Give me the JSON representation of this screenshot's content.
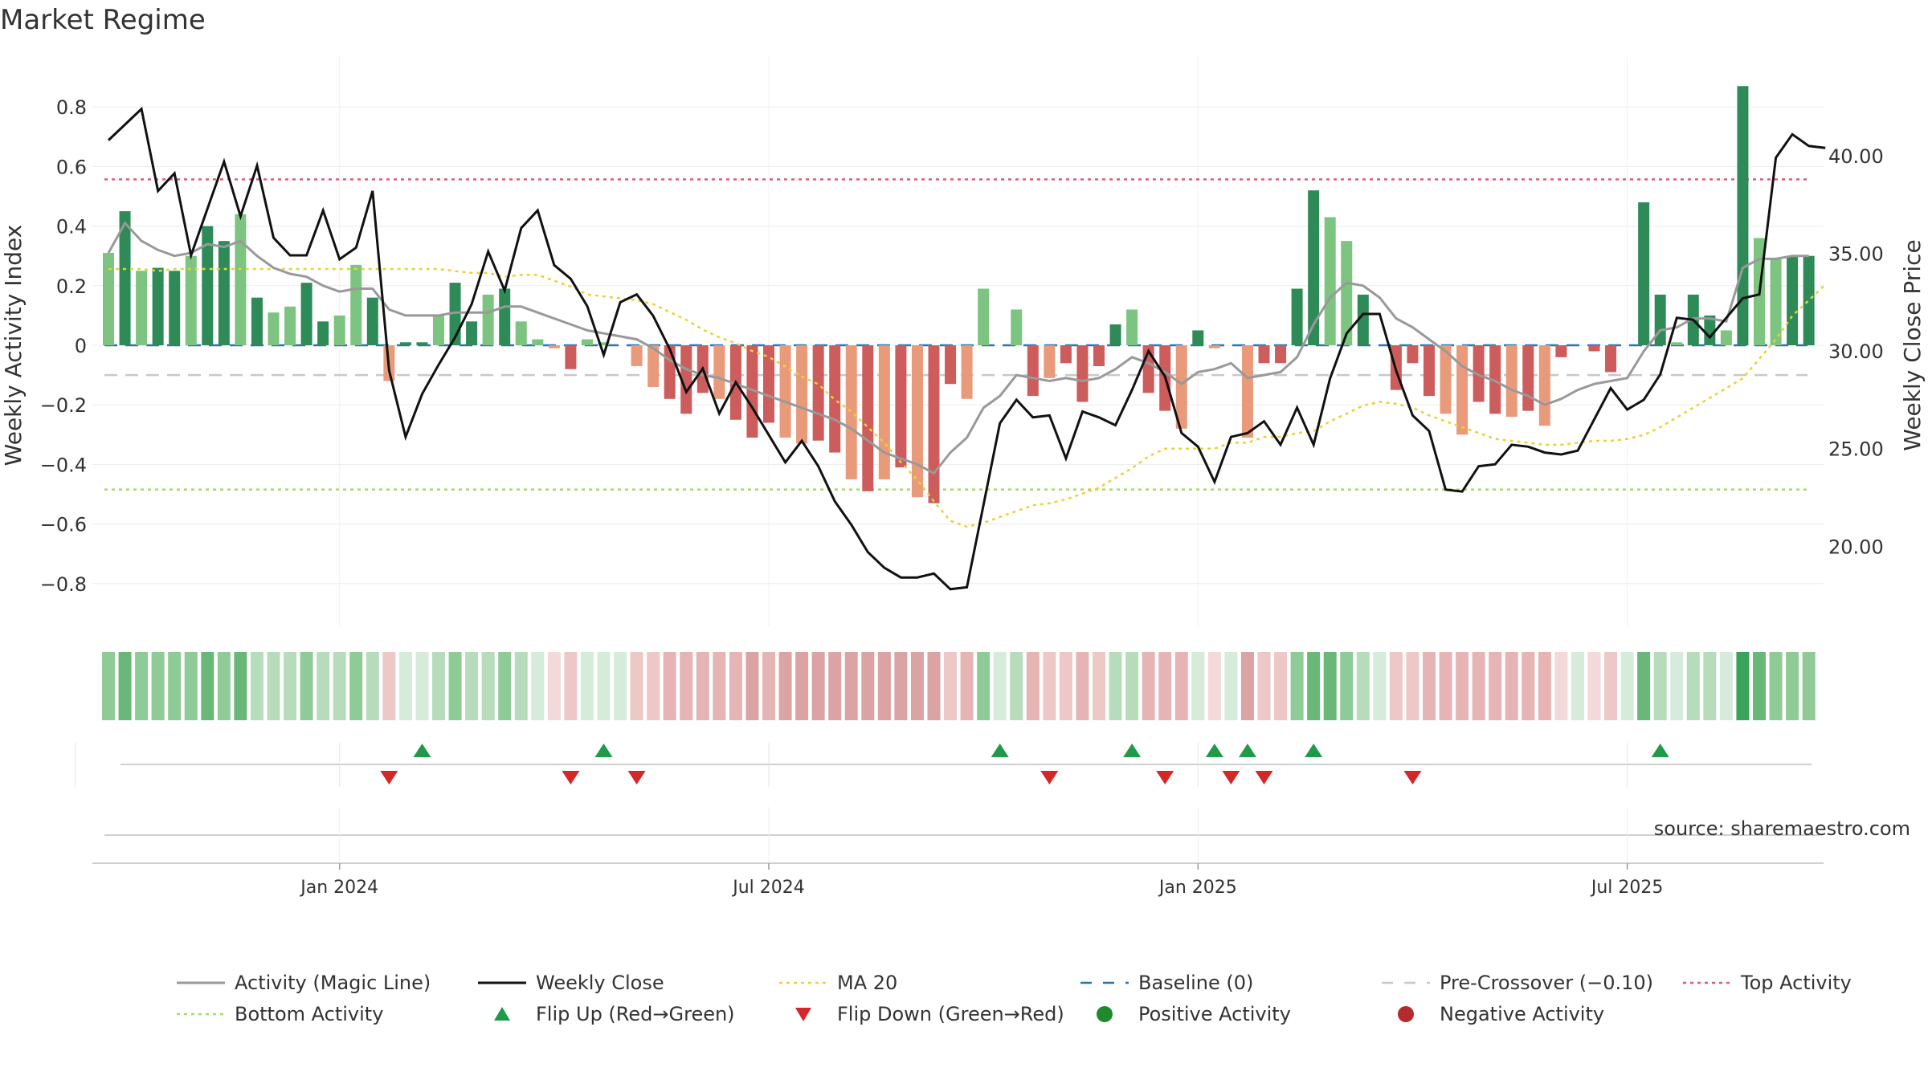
{
  "chart_data": {
    "type": "bar",
    "title": "Market Regime",
    "ylabel_left": "Weekly Activity Index",
    "ylabel_right": "Weekly Close Price",
    "left_ylim": [
      -0.94,
      0.94
    ],
    "right_ylim": [
      15.9,
      45.1
    ],
    "left_ticks": [
      "0.8",
      "0.6",
      "0.4",
      "0.2",
      "0",
      "−0.2",
      "−0.4",
      "−0.6",
      "−0.8"
    ],
    "left_tick_values": [
      0.8,
      0.6,
      0.4,
      0.2,
      0,
      -0.2,
      -0.4,
      -0.6,
      -0.8
    ],
    "right_ticks": [
      "40.00",
      "35.00",
      "30.00",
      "25.00",
      "20.00"
    ],
    "right_tick_values": [
      40,
      35,
      30,
      25,
      20
    ],
    "x_ticks": [
      "Jan 2024",
      "Jul 2024",
      "Jan 2025",
      "Jul 2025"
    ],
    "x_tick_weeks": [
      14,
      40,
      66,
      92
    ],
    "n_weeks": 104,
    "reference_lines": {
      "top": 0.557,
      "bottom": -0.484,
      "pre_crossover": -0.1,
      "baseline": 0
    },
    "activity": [
      0.31,
      0.45,
      0.25,
      0.26,
      0.25,
      0.3,
      0.4,
      0.35,
      0.44,
      0.16,
      0.11,
      0.13,
      0.21,
      0.08,
      0.1,
      0.27,
      0.16,
      -0.12,
      0.01,
      0.01,
      0.1,
      0.21,
      0.08,
      0.17,
      0.19,
      0.08,
      0.02,
      -0.01,
      -0.08,
      0.02,
      0.01,
      0.0,
      -0.07,
      -0.14,
      -0.18,
      -0.23,
      -0.16,
      -0.18,
      -0.25,
      -0.31,
      -0.26,
      -0.31,
      -0.33,
      -0.32,
      -0.36,
      -0.45,
      -0.49,
      -0.45,
      -0.41,
      -0.51,
      -0.53,
      -0.13,
      -0.18,
      0.19,
      0.0,
      0.12,
      -0.17,
      -0.11,
      -0.06,
      -0.19,
      -0.07,
      0.07,
      0.12,
      -0.16,
      -0.22,
      -0.28,
      0.05,
      -0.01,
      0.0,
      -0.31,
      -0.06,
      -0.06,
      0.19,
      0.52,
      0.43,
      0.35,
      0.17,
      0.0,
      -0.15,
      -0.06,
      -0.17,
      -0.23,
      -0.3,
      -0.19,
      -0.23,
      -0.24,
      -0.22,
      -0.27,
      -0.04,
      0.0,
      -0.02,
      -0.09,
      0.0,
      0.48,
      0.17,
      0.01,
      0.17,
      0.1,
      0.05,
      0.87,
      0.36,
      0.29,
      0.3,
      0.3
    ],
    "magic_line": [
      0.31,
      0.41,
      0.35,
      0.32,
      0.3,
      0.31,
      0.34,
      0.33,
      0.35,
      0.3,
      0.26,
      0.24,
      0.23,
      0.2,
      0.18,
      0.19,
      0.19,
      0.12,
      0.1,
      0.1,
      0.1,
      0.11,
      0.11,
      0.11,
      0.13,
      0.13,
      0.11,
      0.09,
      0.07,
      0.05,
      0.04,
      0.03,
      0.02,
      -0.01,
      -0.05,
      -0.08,
      -0.1,
      -0.11,
      -0.13,
      -0.15,
      -0.17,
      -0.19,
      -0.21,
      -0.23,
      -0.25,
      -0.28,
      -0.32,
      -0.36,
      -0.38,
      -0.4,
      -0.43,
      -0.36,
      -0.31,
      -0.21,
      -0.17,
      -0.1,
      -0.11,
      -0.12,
      -0.11,
      -0.12,
      -0.11,
      -0.08,
      -0.04,
      -0.06,
      -0.09,
      -0.13,
      -0.09,
      -0.08,
      -0.06,
      -0.11,
      -0.1,
      -0.09,
      -0.04,
      0.07,
      0.16,
      0.21,
      0.2,
      0.16,
      0.09,
      0.06,
      0.02,
      -0.02,
      -0.07,
      -0.1,
      -0.12,
      -0.15,
      -0.17,
      -0.2,
      -0.18,
      -0.15,
      -0.13,
      -0.12,
      -0.11,
      -0.02,
      0.05,
      0.06,
      0.09,
      0.09,
      0.08,
      0.26,
      0.29,
      0.29,
      0.3,
      0.3
    ],
    "weekly_close": [
      40.8,
      41.6,
      42.4,
      38.2,
      39.1,
      34.9,
      37.3,
      39.7,
      36.9,
      39.5,
      35.8,
      34.9,
      34.9,
      37.2,
      34.7,
      35.3,
      38.2,
      29.0,
      25.6,
      27.8,
      29.3,
      30.7,
      32.4,
      35.1,
      33.1,
      36.3,
      37.2,
      34.4,
      33.7,
      32.3,
      29.8,
      32.5,
      32.9,
      31.8,
      30.1,
      27.9,
      29.1,
      26.8,
      28.4,
      27.1,
      25.7,
      24.3,
      25.4,
      24.1,
      22.3,
      21.1,
      19.7,
      18.9,
      18.4,
      18.4,
      18.6,
      17.8,
      17.9,
      22.1,
      26.3,
      27.5,
      26.6,
      26.7,
      24.5,
      26.9,
      26.6,
      26.2,
      28.0,
      30.0,
      28.7,
      25.8,
      25.1,
      23.3,
      25.6,
      25.8,
      26.4,
      25.2,
      27.1,
      25.2,
      28.6,
      30.9,
      31.9,
      31.9,
      29.0,
      26.7,
      25.9,
      22.9,
      22.8,
      24.1,
      24.2,
      25.2,
      25.1,
      24.8,
      24.7,
      24.9,
      26.5,
      28.1,
      27.0,
      27.5,
      28.8,
      31.7,
      31.6,
      30.7,
      31.7,
      32.7,
      32.9,
      39.9,
      41.1,
      40.5,
      40.4
    ],
    "ma20": [
      34.2,
      34.2,
      34.2,
      34.1,
      34.2,
      34.2,
      34.2,
      34.2,
      34.2,
      34.2,
      34.2,
      34.2,
      34.2,
      34.2,
      34.2,
      34.2,
      34.2,
      34.2,
      34.2,
      34.2,
      34.2,
      34.1,
      34.0,
      34.0,
      33.8,
      33.9,
      33.9,
      33.6,
      33.3,
      32.9,
      32.8,
      32.7,
      32.6,
      32.4,
      32.0,
      31.6,
      31.1,
      30.7,
      30.4,
      30.0,
      29.7,
      29.2,
      28.7,
      28.3,
      27.5,
      26.9,
      26.1,
      25.3,
      24.3,
      23.4,
      22.3,
      21.3,
      21.0,
      21.2,
      21.5,
      21.8,
      22.1,
      22.2,
      22.4,
      22.7,
      23.0,
      23.5,
      24.0,
      24.6,
      25.0,
      25.0,
      25.0,
      25.0,
      25.3,
      25.3,
      25.6,
      25.6,
      25.8,
      25.9,
      26.4,
      26.8,
      27.2,
      27.4,
      27.3,
      27.1,
      26.7,
      26.4,
      26.1,
      25.8,
      25.5,
      25.4,
      25.3,
      25.2,
      25.2,
      25.3,
      25.4,
      25.4,
      25.5,
      25.7,
      26.1,
      26.6,
      27.1,
      27.6,
      28.1,
      28.6,
      29.6,
      30.6,
      31.8,
      32.6,
      33.4
    ],
    "flip_up_weeks": [
      19,
      30,
      54,
      62,
      67,
      69,
      73,
      94
    ],
    "flip_down_weeks": [
      17,
      28,
      32,
      57,
      64,
      68,
      70,
      79
    ],
    "source": "source: sharemaestro.com",
    "legend": [
      {
        "label": "Activity (Magic Line)",
        "kind": "line",
        "color": "#999999"
      },
      {
        "label": "Weekly Close",
        "kind": "line",
        "color": "#111111"
      },
      {
        "label": "MA 20",
        "kind": "dotted",
        "color": "#e8d23a"
      },
      {
        "label": "Baseline (0)",
        "kind": "dashed",
        "color": "#2a73b3"
      },
      {
        "label": "Pre-Crossover (−0.10)",
        "kind": "dashed",
        "color": "#c8c8c8"
      },
      {
        "label": "Top Activity",
        "kind": "dotted",
        "color": "#e05a78"
      },
      {
        "label": "Bottom Activity",
        "kind": "dotted",
        "color": "#a8d86a"
      },
      {
        "label": "Flip Up (Red→Green)",
        "kind": "tri-up",
        "color": "#1f9a4a"
      },
      {
        "label": "Flip Down (Green→Red)",
        "kind": "tri-down",
        "color": "#d62728"
      },
      {
        "label": "Positive Activity",
        "kind": "dot",
        "color": "#1e8a2e"
      },
      {
        "label": "Negative Activity",
        "kind": "dot",
        "color": "#b52a2a"
      }
    ],
    "colors": {
      "pos_strong": "#2e8b57",
      "pos_light": "#7cc47f",
      "neg_strong": "#cd5c5c",
      "neg_light": "#e99a7a"
    }
  }
}
